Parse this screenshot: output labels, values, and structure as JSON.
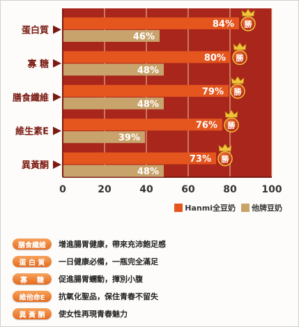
{
  "chart_data": {
    "type": "bar",
    "orientation": "horizontal",
    "categories": [
      "蛋白質",
      "寡  糖",
      "膳食纖維",
      "維生素E",
      "異黃酮"
    ],
    "series": [
      {
        "name": "Hanmi全豆奶",
        "values": [
          84,
          80,
          79,
          76,
          73
        ],
        "color": "#e4561e"
      },
      {
        "name": "他牌豆奶",
        "values": [
          46,
          48,
          48,
          39,
          48
        ],
        "color": "#c9a36c"
      }
    ],
    "value_labels": {
      "Hanmi全豆奶": [
        "84%",
        "80%",
        "79%",
        "76%",
        "73%"
      ],
      "他牌豆奶": [
        "46%",
        "48%",
        "48%",
        "39%",
        "48%"
      ]
    },
    "badge_text": "勝",
    "x_ticks": [
      "0",
      "20",
      "40",
      "60",
      "80",
      "100"
    ],
    "xlim": [
      0,
      100
    ],
    "grid": true,
    "legend_position": "bottom-right",
    "background_color": "#a8261c",
    "grid_color": "#f3c89a"
  },
  "legend": [
    {
      "label": "Hanmi全豆奶",
      "color": "#e4561e"
    },
    {
      "label": "他牌豆奶",
      "color": "#c9a36c"
    }
  ],
  "features": [
    {
      "tag": "膳食纖維",
      "text": "增進腸胃健康，帶來充沛飽足感"
    },
    {
      "tag": "蛋 白 質",
      "text": "一日健康必備，一瓶完全滿足"
    },
    {
      "tag": "寡    糖",
      "text": "促進腸胃蠕動，揮別小腹"
    },
    {
      "tag": "維他命E",
      "text": "抗氧化聖品，保住青春不留失"
    },
    {
      "tag": "異 黃 酮",
      "text": "使女性再現青春魅力"
    }
  ]
}
